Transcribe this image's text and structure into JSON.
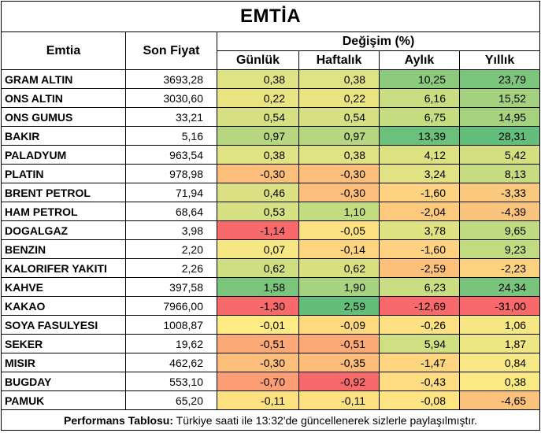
{
  "title": "EMTİA",
  "headers": {
    "commodity": "Emtia",
    "last_price": "Son Fiyat",
    "change": "Değişim (%)",
    "daily": "Günlük",
    "weekly": "Haftalık",
    "monthly": "Aylık",
    "yearly": "Yıllık"
  },
  "rows": [
    {
      "name": "GRAM ALTIN",
      "price": "3693,28",
      "daily": "0,38",
      "weekly": "0,38",
      "monthly": "10,25",
      "yearly": "23,79",
      "colors": [
        "#e0e384",
        "#e0e384",
        "#8cca7e",
        "#7cc57d"
      ]
    },
    {
      "name": "ONS ALTIN",
      "price": "3030,60",
      "daily": "0,22",
      "weekly": "0,22",
      "monthly": "6,16",
      "yearly": "15,52",
      "colors": [
        "#eae382",
        "#eae382",
        "#cadd82",
        "#a3d17f"
      ]
    },
    {
      "name": "ONS GUMUS",
      "price": "33,21",
      "daily": "0,54",
      "weekly": "0,54",
      "monthly": "6,75",
      "yearly": "14,95",
      "colors": [
        "#d6e083",
        "#d6e083",
        "#c5dc81",
        "#a6d27f"
      ]
    },
    {
      "name": "BAKIR",
      "price": "5,16",
      "daily": "0,97",
      "weekly": "0,97",
      "monthly": "13,39",
      "yearly": "28,31",
      "colors": [
        "#b6d780",
        "#b6d780",
        "#6bc07c",
        "#63be7b"
      ]
    },
    {
      "name": "PALADYUM",
      "price": "963,54",
      "daily": "0,38",
      "weekly": "0,38",
      "monthly": "4,12",
      "yearly": "5,42",
      "colors": [
        "#e0e384",
        "#e0e384",
        "#dce182",
        "#d4df82"
      ]
    },
    {
      "name": "PLATIN",
      "price": "978,98",
      "daily": "-0,30",
      "weekly": "-0,30",
      "monthly": "3,24",
      "yearly": "8,13",
      "colors": [
        "#fcbf7b",
        "#fcbf7b",
        "#e1e283",
        "#c7dc81"
      ]
    },
    {
      "name": "BRENT PETROL",
      "price": "71,94",
      "daily": "0,46",
      "weekly": "-0,30",
      "monthly": "-1,60",
      "yearly": "-3,33",
      "colors": [
        "#dbe183",
        "#fcbf7b",
        "#fed280",
        "#fbc97d"
      ]
    },
    {
      "name": "HAM PETROL",
      "price": "68,64",
      "daily": "0,53",
      "weekly": "1,10",
      "monthly": "-2,04",
      "yearly": "-4,39",
      "colors": [
        "#d7e083",
        "#c3db81",
        "#fdc97d",
        "#fbc47c"
      ]
    },
    {
      "name": "DOGALGAZ",
      "price": "3,98",
      "daily": "-1,14",
      "weekly": "-0,05",
      "monthly": "3,78",
      "yearly": "9,65",
      "colors": [
        "#f8696b",
        "#fde281",
        "#dee283",
        "#bfda81"
      ]
    },
    {
      "name": "BENZIN",
      "price": "2,20",
      "daily": "0,07",
      "weekly": "-0,14",
      "monthly": "-1,60",
      "yearly": "9,23",
      "colors": [
        "#f5e784",
        "#fdd580",
        "#fed280",
        "#c1db81"
      ]
    },
    {
      "name": "KALORIFER YAKITI",
      "price": "2,26",
      "daily": "0,62",
      "weekly": "0,62",
      "monthly": "-2,59",
      "yearly": "-2,23",
      "colors": [
        "#d0de82",
        "#d8e082",
        "#fdc07b",
        "#fdd27f"
      ]
    },
    {
      "name": "KAHVE",
      "price": "397,58",
      "daily": "1,58",
      "weekly": "1,90",
      "monthly": "6,23",
      "yearly": "24,34",
      "colors": [
        "#7bc47c",
        "#a7d27f",
        "#cadd82",
        "#78c47d"
      ]
    },
    {
      "name": "KAKAO",
      "price": "7966,00",
      "daily": "-1,30",
      "weekly": "2,59",
      "monthly": "-12,69",
      "yearly": "-31,00",
      "colors": [
        "#f8696b",
        "#63be7b",
        "#f8696b",
        "#f8696b"
      ]
    },
    {
      "name": "SOYA FASULYESI",
      "price": "1008,87",
      "daily": "-0,01",
      "weekly": "-0,09",
      "monthly": "-0,26",
      "yearly": "1,06",
      "colors": [
        "#feeb84",
        "#fed980",
        "#fee182",
        "#f4e784"
      ]
    },
    {
      "name": "SEKER",
      "price": "19,62",
      "daily": "-0,51",
      "weekly": "-0,51",
      "monthly": "5,94",
      "yearly": "1,87",
      "colors": [
        "#fbaa77",
        "#fbaa77",
        "#cfdf82",
        "#eee584"
      ]
    },
    {
      "name": "MISIR",
      "price": "462,62",
      "daily": "-0,30",
      "weekly": "-0,35",
      "monthly": "-1,47",
      "yearly": "0,84",
      "colors": [
        "#fcbf7b",
        "#fcbd7b",
        "#fed680",
        "#f6e884"
      ]
    },
    {
      "name": "BUGDAY",
      "price": "553,10",
      "daily": "-0,70",
      "weekly": "-0,92",
      "monthly": "-0,43",
      "yearly": "0,38",
      "colors": [
        "#fb9d75",
        "#f8696b",
        "#fedc81",
        "#fbea84"
      ]
    },
    {
      "name": "PAMUK",
      "price": "65,20",
      "daily": "-0,11",
      "weekly": "-0,11",
      "monthly": "-0,08",
      "yearly": "-4,65",
      "colors": [
        "#fde181",
        "#fde181",
        "#fee482",
        "#fbc27c"
      ]
    }
  ],
  "footer": {
    "label": "Performans Tablosu:",
    "text": " Türkiye saati ile 13:32'de güncellenerek sizlerle paylaşılmıştır."
  }
}
